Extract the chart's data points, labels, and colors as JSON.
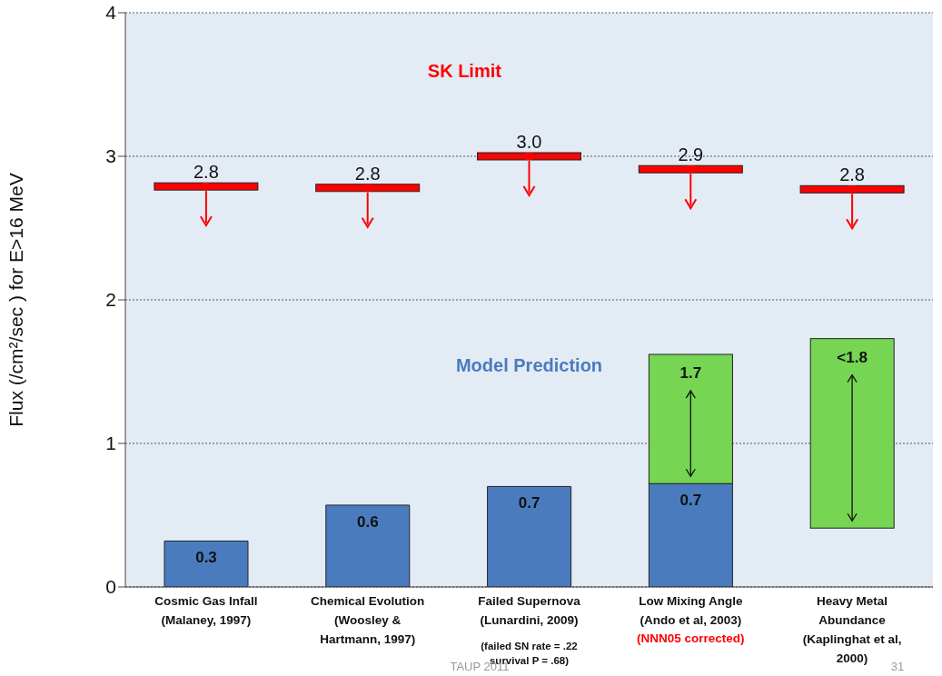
{
  "chart_data": {
    "type": "bar",
    "ylabel": "Flux (/cm²/sec ) for E>16 MeV",
    "categories": [
      "Cosmic Gas Infall\n(Malaney, 1997)",
      "Chemical Evolution\n(Woosley &\nHartmann, 1997)",
      "Failed Supernova\n(Lunardini, 2009)",
      "Low Mixing Angle\n(Ando et al, 2003)",
      "Heavy Metal\nAbundance\n(Kaplinghat et al,\n2000)"
    ],
    "series": [
      {
        "name": "Model Prediction",
        "color": "#4a7bbf",
        "values": [
          0.32,
          0.57,
          0.7,
          0.72,
          null
        ],
        "value_labels": [
          "0.3",
          "0.6",
          "0.7",
          "0.7",
          null
        ]
      },
      {
        "color": "#76d552",
        "base": [
          null,
          null,
          null,
          0.72,
          0.41
        ],
        "values": [
          null,
          null,
          null,
          0.9,
          1.32
        ]
      },
      {
        "name": "SK Limit",
        "type": "scatter",
        "marker": "square",
        "color": "#ff0000",
        "values": [
          2.79,
          2.78,
          3.0,
          2.91,
          2.77
        ],
        "value_labels": [
          "2.8",
          "2.8",
          "3.0",
          "2.9",
          "2.8"
        ]
      }
    ],
    "ylim": [
      0,
      4
    ],
    "yticks": [
      0,
      1,
      2,
      3,
      4
    ],
    "grid": "y",
    "annotations": [
      {
        "text": "1.7",
        "x": "Low Mixing Angle\n(Ando et al, 2003)",
        "y": 1.62
      },
      {
        "text": "<1.8",
        "x": "Heavy Metal\nAbundance\n(Kaplinghat et al,\n2000)",
        "y": 1.73
      },
      "(failed SN rate = .22\nsurvival P = .68)",
      "(NNN05 corrected)",
      "TAUP 2011",
      "31"
    ]
  }
}
